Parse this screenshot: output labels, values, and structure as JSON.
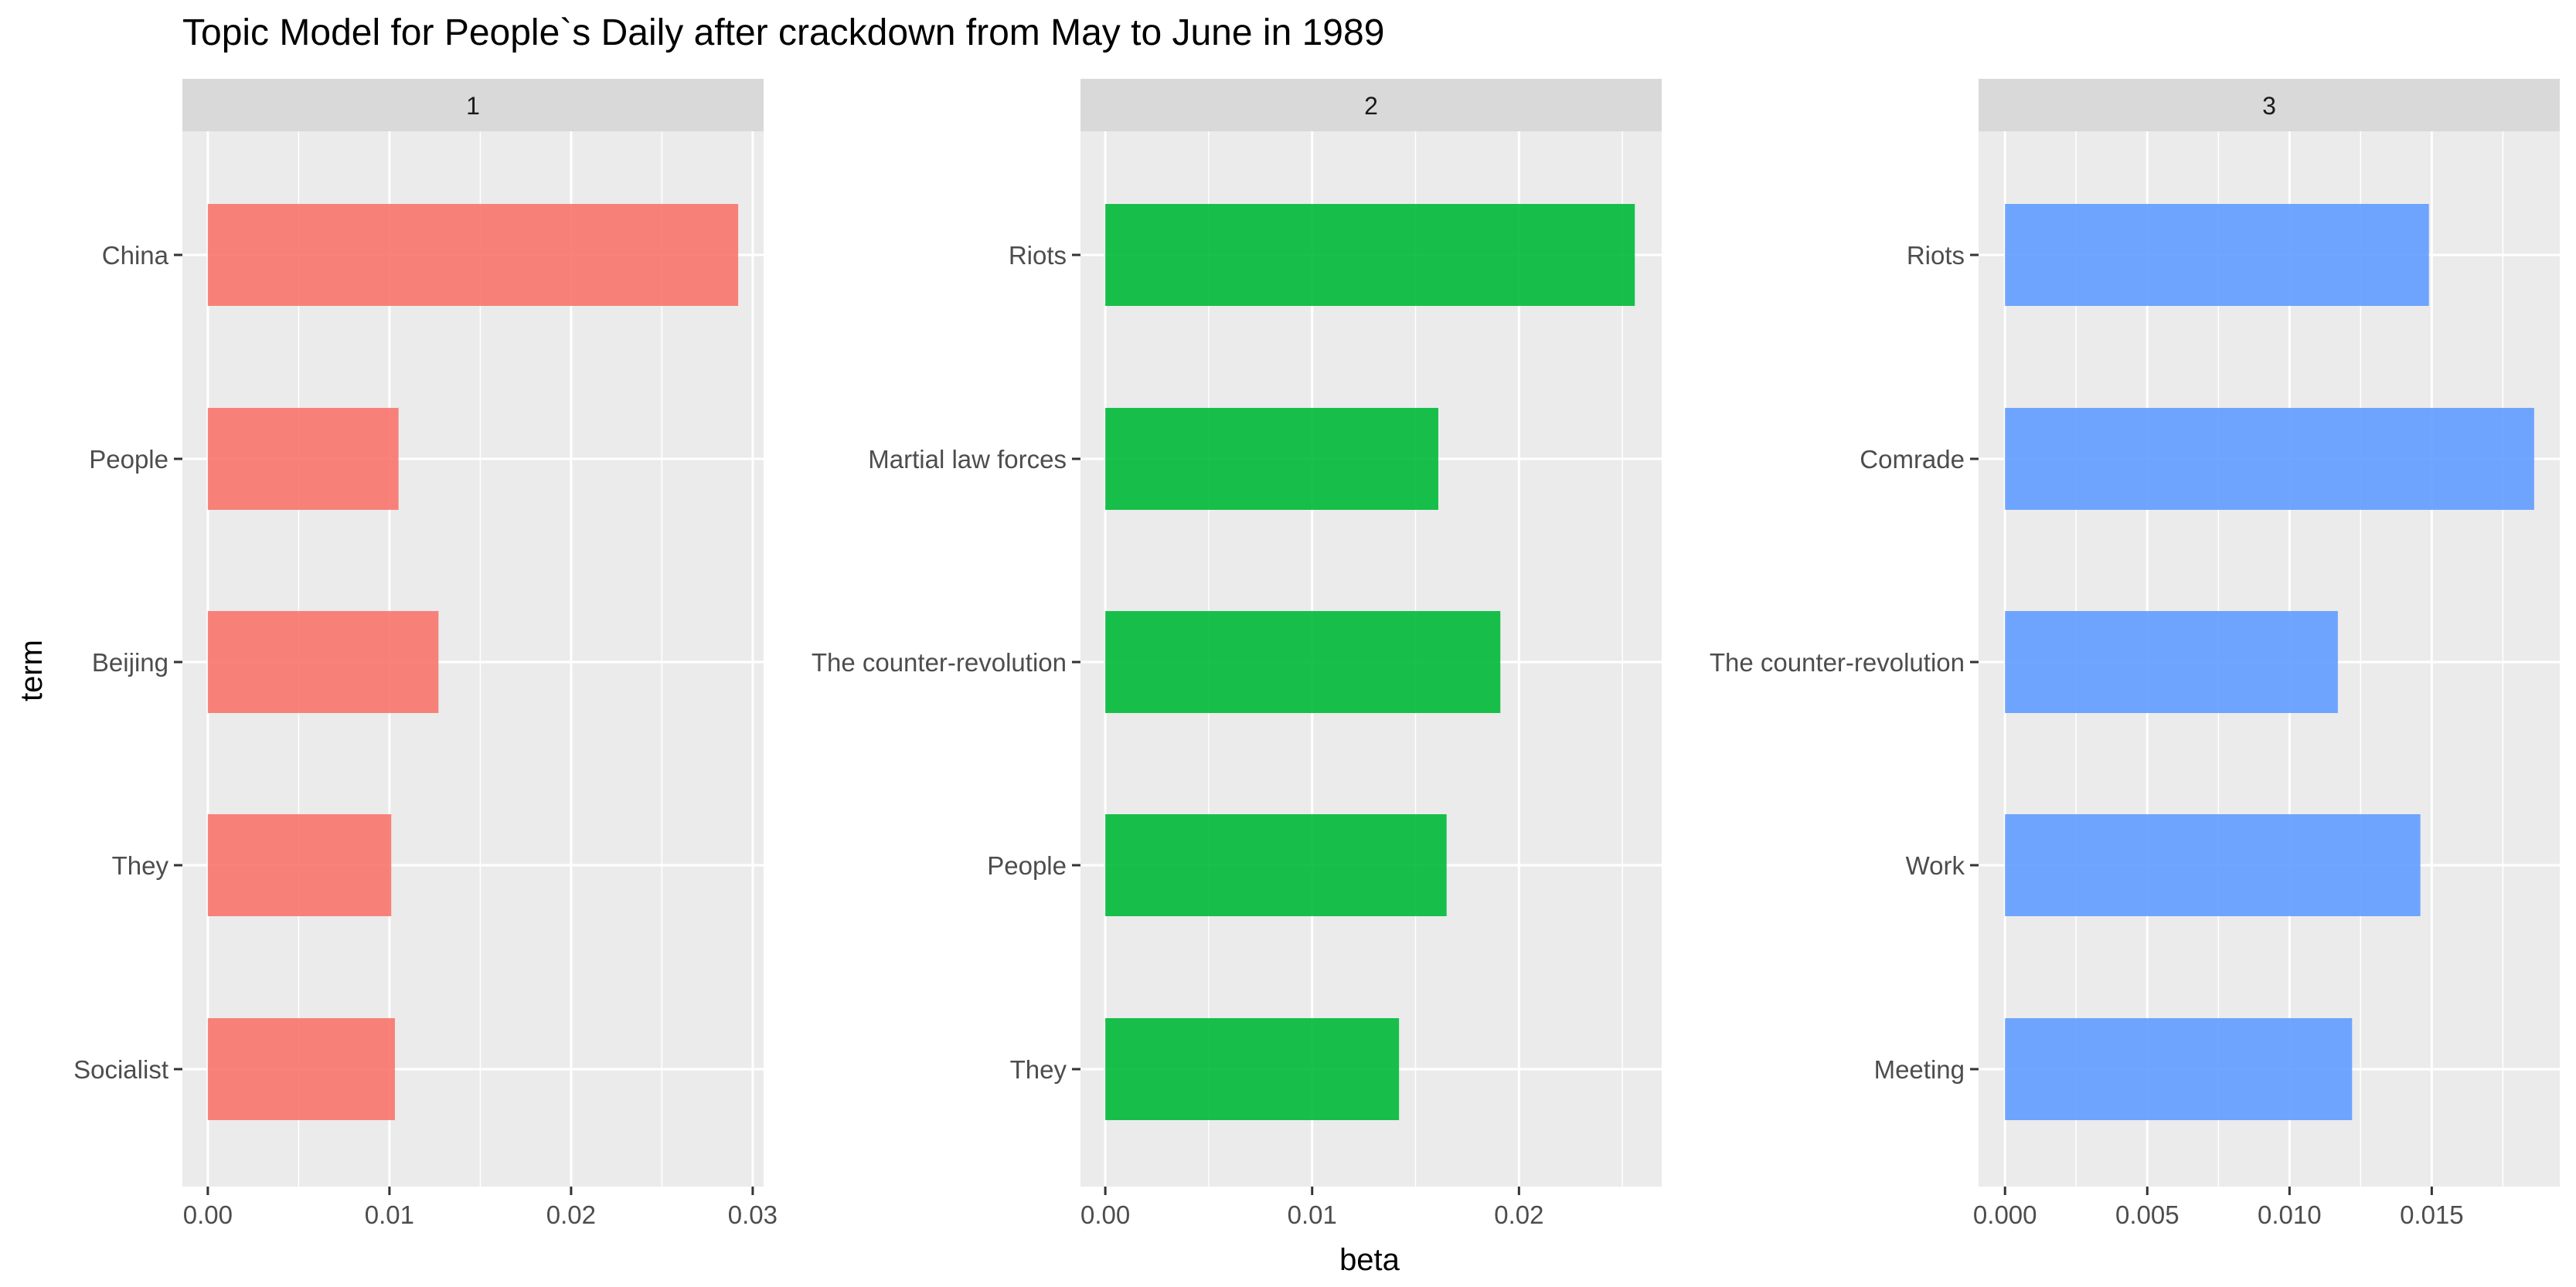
{
  "chart_data": {
    "type": "bar",
    "orientation": "horizontal",
    "title": "Topic Model for People`s Daily after crackdown from May to June in 1989",
    "xlabel": "beta",
    "ylabel": "term",
    "grid": true,
    "legend": "none",
    "facets": [
      {
        "strip_label": "1",
        "color": "#F8766D",
        "categories": [
          "China",
          "People",
          "Beijing",
          "They",
          "Socialist"
        ],
        "values": [
          0.0292,
          0.0105,
          0.0127,
          0.0101,
          0.0103
        ],
        "xlim": [
          -0.0014,
          0.0306
        ],
        "x_ticks": [
          0,
          0.01,
          0.02,
          0.03
        ],
        "x_tick_labels": [
          "0.00",
          "0.01",
          "0.02",
          "0.03"
        ]
      },
      {
        "strip_label": "2",
        "color": "#00BA38",
        "categories": [
          "Riots",
          "Martial law forces",
          "The counter-revolution",
          "People",
          "They"
        ],
        "values": [
          0.0256,
          0.0161,
          0.0191,
          0.0165,
          0.0142
        ],
        "xlim": [
          -0.0012,
          0.0269
        ],
        "x_ticks": [
          0,
          0.01,
          0.02
        ],
        "x_tick_labels": [
          "0.00",
          "0.01",
          "0.02"
        ]
      },
      {
        "strip_label": "3",
        "color": "#619CFF",
        "categories": [
          "Riots",
          "Comrade",
          "The counter-revolution",
          "Work",
          "Meeting"
        ],
        "values": [
          0.0149,
          0.0186,
          0.0117,
          0.0146,
          0.0122
        ],
        "xlim": [
          -0.00093,
          0.0195
        ],
        "x_ticks": [
          0,
          0.005,
          0.01,
          0.015
        ],
        "x_tick_labels": [
          "0.000",
          "0.005",
          "0.010",
          "0.015"
        ]
      }
    ]
  }
}
